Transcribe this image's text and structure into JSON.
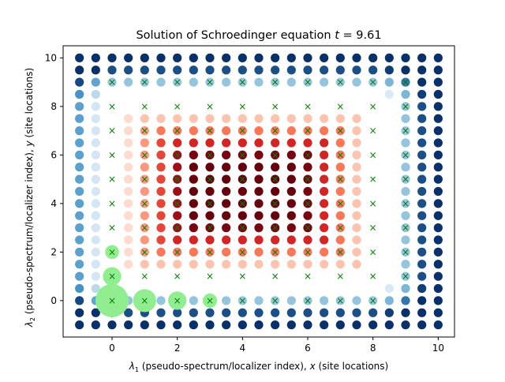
{
  "chart_data": {
    "type": "scatter",
    "title_prefix": "Solution of Schroedinger equation ",
    "title_var": "t",
    "title_eq": " = 9.61",
    "xlabel_sym": "λ",
    "xlabel_sub": "1",
    "xlabel_text": " (pseudo-spectrum/localizer index), ",
    "xlabel_var": "x",
    "xlabel_tail": " (site locations)",
    "ylabel_sym": "λ",
    "ylabel_sub": "2",
    "ylabel_text": " (pseudo-spectrum/localizer index), ",
    "ylabel_var": "y",
    "ylabel_tail": " (site locations)",
    "xlim": [
      -1.5,
      10.5
    ],
    "ylim": [
      -1.5,
      10.5
    ],
    "xticks": [
      "0",
      "2",
      "4",
      "6",
      "8",
      "10"
    ],
    "yticks": [
      "0",
      "2",
      "4",
      "6",
      "8",
      "10"
    ],
    "grid": false,
    "spectrum_grid": {
      "x_start": -1,
      "x_end": 10,
      "y_start": -1,
      "y_end": 10,
      "step": 0.5
    },
    "site_marker": "×",
    "site_color": "#007f00",
    "sites": [
      [
        0,
        0
      ],
      [
        1,
        0
      ],
      [
        2,
        0
      ],
      [
        3,
        0
      ],
      [
        4,
        0
      ],
      [
        5,
        0
      ],
      [
        6,
        0
      ],
      [
        7,
        0
      ],
      [
        8,
        0
      ],
      [
        0,
        1
      ],
      [
        1,
        1
      ],
      [
        2,
        1
      ],
      [
        3,
        1
      ],
      [
        4,
        1
      ],
      [
        5,
        1
      ],
      [
        6,
        1
      ],
      [
        7,
        1
      ],
      [
        8,
        1
      ],
      [
        9,
        1
      ],
      [
        0,
        2
      ],
      [
        1,
        2
      ],
      [
        2,
        2
      ],
      [
        3,
        2
      ],
      [
        4,
        2
      ],
      [
        5,
        2
      ],
      [
        6,
        2
      ],
      [
        7,
        2
      ],
      [
        8,
        2
      ],
      [
        9,
        2
      ],
      [
        0,
        3
      ],
      [
        1,
        3
      ],
      [
        2,
        3
      ],
      [
        3,
        3
      ],
      [
        4,
        3
      ],
      [
        5,
        3
      ],
      [
        6,
        3
      ],
      [
        7,
        3
      ],
      [
        8,
        3
      ],
      [
        9,
        3
      ],
      [
        0,
        4
      ],
      [
        1,
        4
      ],
      [
        2,
        4
      ],
      [
        3,
        4
      ],
      [
        4,
        4
      ],
      [
        5,
        4
      ],
      [
        6,
        4
      ],
      [
        7,
        4
      ],
      [
        8,
        4
      ],
      [
        9,
        4
      ],
      [
        0,
        5
      ],
      [
        1,
        5
      ],
      [
        2,
        5
      ],
      [
        3,
        5
      ],
      [
        4,
        5
      ],
      [
        5,
        5
      ],
      [
        6,
        5
      ],
      [
        7,
        5
      ],
      [
        8,
        5
      ],
      [
        9,
        5
      ],
      [
        0,
        6
      ],
      [
        1,
        6
      ],
      [
        2,
        6
      ],
      [
        3,
        6
      ],
      [
        4,
        6
      ],
      [
        5,
        6
      ],
      [
        6,
        6
      ],
      [
        7,
        6
      ],
      [
        8,
        6
      ],
      [
        9,
        6
      ],
      [
        0,
        7
      ],
      [
        1,
        7
      ],
      [
        2,
        7
      ],
      [
        3,
        7
      ],
      [
        4,
        7
      ],
      [
        5,
        7
      ],
      [
        6,
        7
      ],
      [
        7,
        7
      ],
      [
        8,
        7
      ],
      [
        9,
        7
      ],
      [
        0,
        8
      ],
      [
        1,
        8
      ],
      [
        2,
        8
      ],
      [
        3,
        8
      ],
      [
        4,
        8
      ],
      [
        5,
        8
      ],
      [
        6,
        8
      ],
      [
        7,
        8
      ],
      [
        8,
        8
      ],
      [
        9,
        8
      ],
      [
        0,
        9
      ],
      [
        1,
        9
      ],
      [
        2,
        9
      ],
      [
        3,
        9
      ],
      [
        4,
        9
      ],
      [
        5,
        9
      ],
      [
        6,
        9
      ],
      [
        7,
        9
      ],
      [
        8,
        9
      ],
      [
        9,
        9
      ]
    ],
    "wavefunction_color": "#90ee90",
    "wavefunction_amplitudes": [
      {
        "x": 0,
        "y": 0,
        "amp": 1.0
      },
      {
        "x": 1,
        "y": 0,
        "amp": 0.62
      },
      {
        "x": 2,
        "y": 0,
        "amp": 0.45
      },
      {
        "x": 3,
        "y": 0,
        "amp": 0.3
      },
      {
        "x": 0,
        "y": 1,
        "amp": 0.45
      },
      {
        "x": 0,
        "y": 2,
        "amp": 0.28
      }
    ],
    "colormaps": {
      "inside": [
        "#fff5f0",
        "#fcbba1",
        "#fb6a4a",
        "#cb181d",
        "#67000d"
      ],
      "outside": [
        "#deebf7",
        "#9ecae1",
        "#4292c6",
        "#08306b"
      ]
    }
  }
}
